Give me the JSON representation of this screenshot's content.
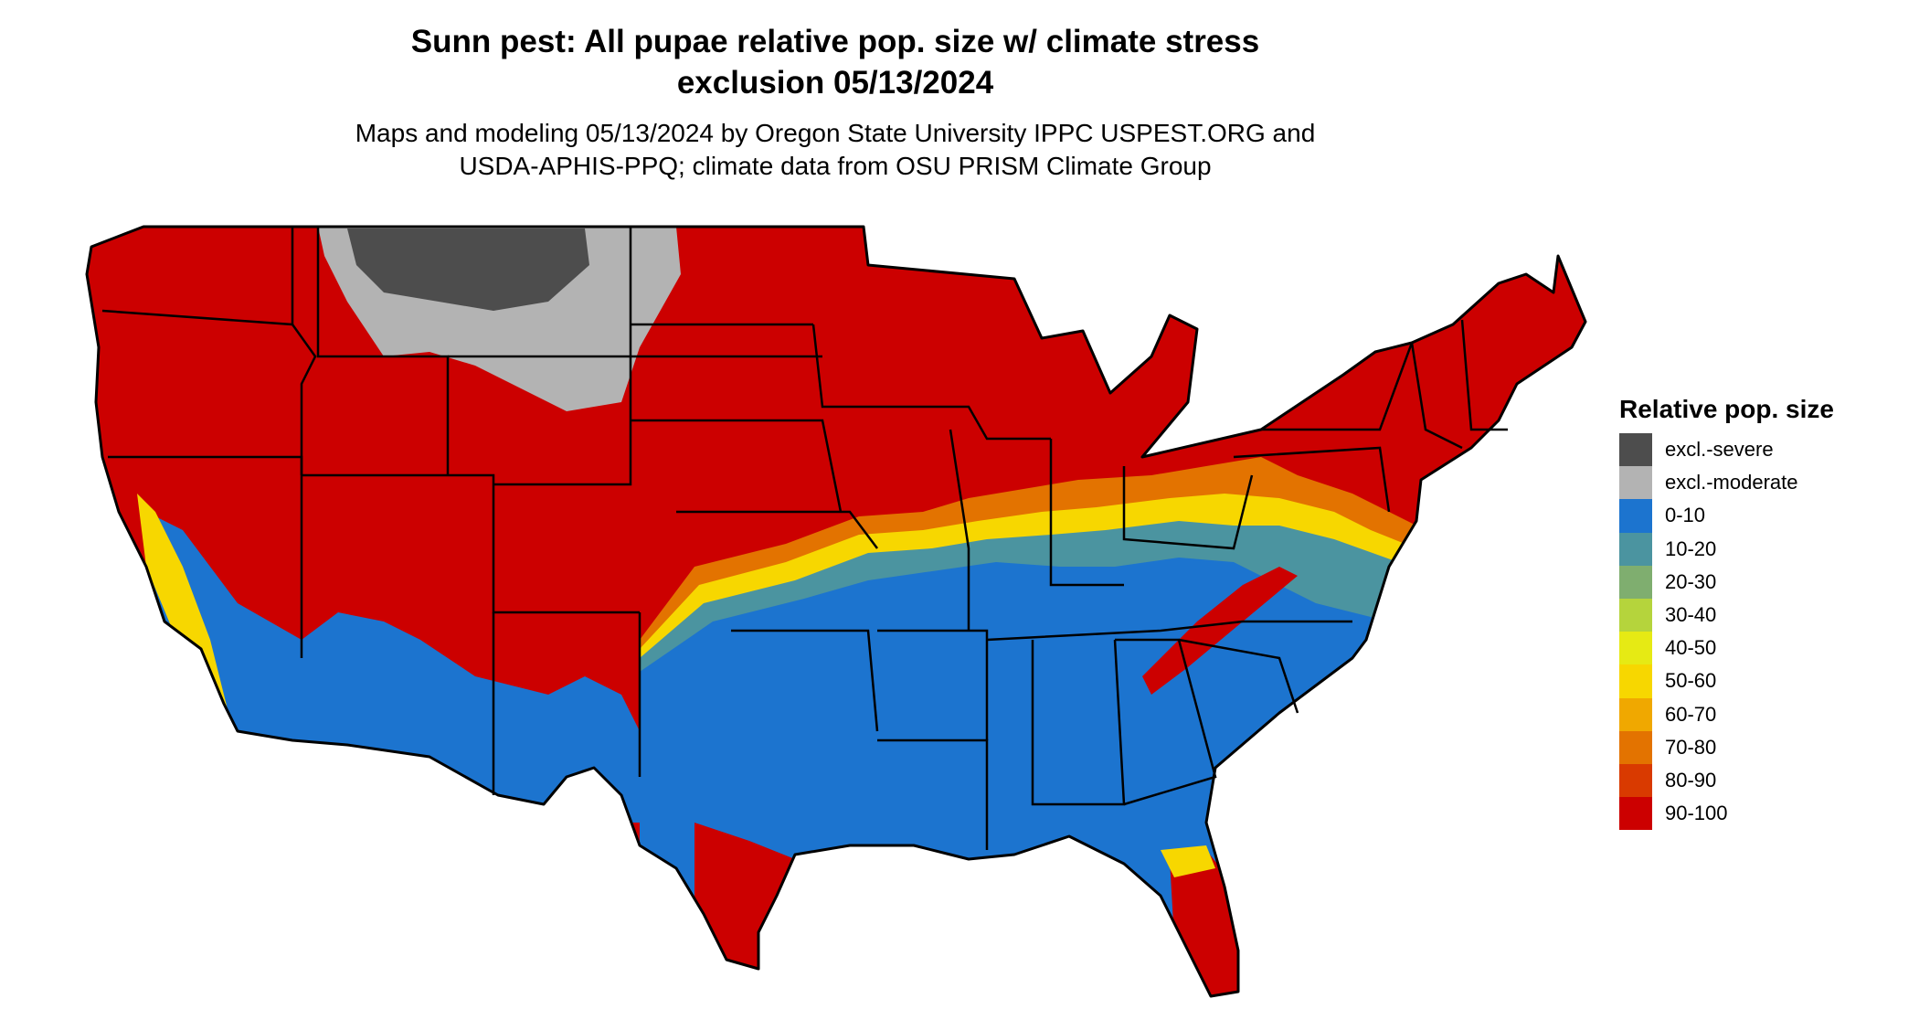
{
  "header": {
    "title_line1": "Sunn pest: All pupae relative pop. size w/ climate stress",
    "title_line2": "exclusion 05/13/2024",
    "subtitle_line1": "Maps and modeling 05/13/2024 by Oregon State University IPPC USPEST.ORG and",
    "subtitle_line2": "USDA-APHIS-PPQ; climate data from OSU PRISM Climate Group"
  },
  "legend": {
    "title": "Relative pop. size",
    "items": [
      {
        "label": "excl.-severe",
        "color": "#4d4d4d"
      },
      {
        "label": "excl.-moderate",
        "color": "#b3b3b3"
      },
      {
        "label": "0-10",
        "color": "#1c74cf"
      },
      {
        "label": "10-20",
        "color": "#4b94a0"
      },
      {
        "label": "20-30",
        "color": "#7fae6f"
      },
      {
        "label": "30-40",
        "color": "#b5d43c"
      },
      {
        "label": "40-50",
        "color": "#e6ea14"
      },
      {
        "label": "50-60",
        "color": "#f7d700"
      },
      {
        "label": "60-70",
        "color": "#f0a800"
      },
      {
        "label": "70-80",
        "color": "#e37300"
      },
      {
        "label": "80-90",
        "color": "#d93a00"
      },
      {
        "label": "90-100",
        "color": "#cc0000"
      }
    ]
  }
}
